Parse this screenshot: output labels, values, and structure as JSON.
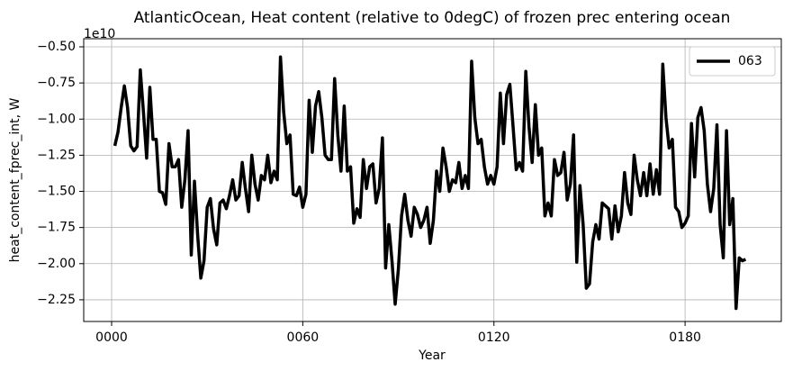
{
  "chart_data": {
    "type": "line",
    "title": "AtlanticOcean, Heat content (relative to 0degC) of frozen prec entering ocean",
    "xlabel": "Year",
    "ylabel": "heat_content_fprec_int, W",
    "offset_text": "1e10",
    "x": [
      1,
      2,
      3,
      4,
      5,
      6,
      7,
      8,
      9,
      10,
      11,
      12,
      13,
      14,
      15,
      16,
      17,
      18,
      19,
      20,
      21,
      22,
      23,
      24,
      25,
      26,
      27,
      28,
      29,
      30,
      31,
      32,
      33,
      34,
      35,
      36,
      37,
      38,
      39,
      40,
      41,
      42,
      43,
      44,
      45,
      46,
      47,
      48,
      49,
      50,
      51,
      52,
      53,
      54,
      55,
      56,
      57,
      58,
      59,
      60,
      61,
      62,
      63,
      64,
      65,
      66,
      67,
      68,
      69,
      70,
      71,
      72,
      73,
      74,
      75,
      76,
      77,
      78,
      79,
      80,
      81,
      82,
      83,
      84,
      85,
      86,
      87,
      88,
      89,
      90,
      91,
      92,
      93,
      94,
      95,
      96,
      97,
      98,
      99,
      100,
      101,
      102,
      103,
      104,
      105,
      106,
      107,
      108,
      109,
      110,
      111,
      112,
      113,
      114,
      115,
      116,
      117,
      118,
      119,
      120,
      121,
      122,
      123,
      124,
      125,
      126,
      127,
      128,
      129,
      130,
      131,
      132,
      133,
      134,
      135,
      136,
      137,
      138,
      139,
      140,
      141,
      142,
      143,
      144,
      145,
      146,
      147,
      148,
      149,
      150,
      151,
      152,
      153,
      154,
      155,
      156,
      157,
      158,
      159,
      160,
      161,
      162,
      163,
      164,
      165,
      166,
      167,
      168,
      169,
      170,
      171,
      172,
      173,
      174,
      175,
      176,
      177,
      178,
      179,
      180,
      181,
      182,
      183,
      184,
      185,
      186,
      187,
      188,
      189,
      190,
      191,
      192,
      193,
      194,
      195,
      196,
      197,
      198,
      199
    ],
    "series": [
      {
        "name": "063",
        "color": "#000000",
        "values": [
          -1.185,
          -1.09,
          -0.92,
          -0.77,
          -0.92,
          -1.185,
          -1.22,
          -1.19,
          -0.66,
          -0.955,
          -1.27,
          -0.78,
          -1.14,
          -1.14,
          -1.5,
          -1.51,
          -1.59,
          -1.17,
          -1.33,
          -1.33,
          -1.28,
          -1.61,
          -1.42,
          -1.08,
          -1.94,
          -1.43,
          -1.8,
          -2.1,
          -1.98,
          -1.61,
          -1.55,
          -1.76,
          -1.87,
          -1.58,
          -1.56,
          -1.62,
          -1.53,
          -1.42,
          -1.56,
          -1.53,
          -1.3,
          -1.48,
          -1.64,
          -1.25,
          -1.45,
          -1.56,
          -1.39,
          -1.42,
          -1.25,
          -1.44,
          -1.36,
          -1.42,
          -0.57,
          -0.95,
          -1.17,
          -1.11,
          -1.52,
          -1.53,
          -1.47,
          -1.61,
          -1.52,
          -0.87,
          -1.23,
          -0.91,
          -0.81,
          -0.99,
          -1.25,
          -1.28,
          -1.28,
          -0.72,
          -1.11,
          -1.36,
          -0.91,
          -1.36,
          -1.33,
          -1.72,
          -1.62,
          -1.68,
          -1.28,
          -1.48,
          -1.33,
          -1.31,
          -1.58,
          -1.48,
          -1.13,
          -2.03,
          -1.73,
          -1.98,
          -2.28,
          -2.04,
          -1.67,
          -1.52,
          -1.7,
          -1.81,
          -1.61,
          -1.66,
          -1.75,
          -1.7,
          -1.61,
          -1.86,
          -1.7,
          -1.36,
          -1.5,
          -1.2,
          -1.33,
          -1.5,
          -1.42,
          -1.44,
          -1.3,
          -1.48,
          -1.39,
          -1.48,
          -0.6,
          -0.99,
          -1.17,
          -1.14,
          -1.33,
          -1.45,
          -1.39,
          -1.45,
          -1.33,
          -0.82,
          -1.17,
          -0.83,
          -0.76,
          -1.05,
          -1.35,
          -1.3,
          -1.36,
          -0.67,
          -1.05,
          -1.3,
          -0.9,
          -1.25,
          -1.2,
          -1.67,
          -1.58,
          -1.67,
          -1.28,
          -1.39,
          -1.37,
          -1.23,
          -1.56,
          -1.45,
          -1.11,
          -1.99,
          -1.46,
          -1.73,
          -2.17,
          -2.14,
          -1.85,
          -1.73,
          -1.83,
          -1.58,
          -1.6,
          -1.62,
          -1.83,
          -1.6,
          -1.78,
          -1.67,
          -1.37,
          -1.58,
          -1.66,
          -1.25,
          -1.42,
          -1.53,
          -1.37,
          -1.53,
          -1.31,
          -1.52,
          -1.35,
          -1.52,
          -0.62,
          -0.99,
          -1.2,
          -1.14,
          -1.61,
          -1.64,
          -1.75,
          -1.72,
          -1.67,
          -1.03,
          -1.4,
          -0.99,
          -0.92,
          -1.08,
          -1.45,
          -1.64,
          -1.48,
          -1.04,
          -1.73,
          -1.96,
          -1.08,
          -1.73,
          -1.55,
          -2.31,
          -1.96,
          -1.98,
          -1.97
        ]
      }
    ],
    "xlim": [
      -8.76,
      210.2
    ],
    "xticks": [
      {
        "value": 0,
        "label": "0000"
      },
      {
        "value": 60,
        "label": "0060"
      },
      {
        "value": 120,
        "label": "0120"
      },
      {
        "value": 180,
        "label": "0180"
      }
    ],
    "ylim": [
      -2.4,
      -0.444
    ],
    "yticks": [
      {
        "value": -0.5,
        "label": "−0.50"
      },
      {
        "value": -0.75,
        "label": "−0.75"
      },
      {
        "value": -1.0,
        "label": "−1.00"
      },
      {
        "value": -1.25,
        "label": "−1.25"
      },
      {
        "value": -1.5,
        "label": "−1.50"
      },
      {
        "value": -1.75,
        "label": "−1.75"
      },
      {
        "value": -2.0,
        "label": "−2.00"
      },
      {
        "value": -2.25,
        "label": "−2.25"
      }
    ],
    "grid": true,
    "legend": "upper right"
  }
}
